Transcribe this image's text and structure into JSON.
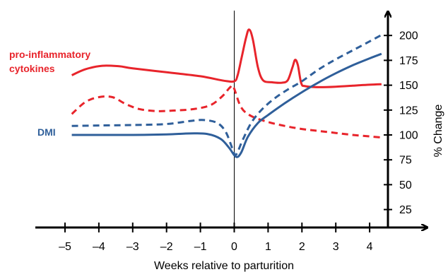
{
  "chart_data": {
    "type": "line",
    "xlabel": "Weeks relative to parturition",
    "ylabel": "% Change",
    "xlim": [
      -5,
      4.5
    ],
    "ylim": [
      10,
      212
    ],
    "x_ticks": [
      -5,
      -4,
      -3,
      -2,
      -1,
      0,
      1,
      2,
      3,
      4
    ],
    "x_tick_labels": [
      "–5",
      "–4",
      "–3",
      "–2",
      "–1",
      "0",
      "1",
      "2",
      "3",
      "4"
    ],
    "y_ticks": [
      25,
      50,
      75,
      100,
      125,
      150,
      175,
      200
    ],
    "y_tick_labels": [
      "25",
      "50",
      "75",
      "100",
      "125",
      "150",
      "175",
      "200"
    ],
    "reference_line_x": 0,
    "y_axis_side": "right",
    "annotations": [
      {
        "text": "pro-inflammatory\ncytokines",
        "color": "#e8242b"
      },
      {
        "text": "DMI",
        "color": "#2f5f9a"
      }
    ],
    "series": [
      {
        "color": "#e8242b",
        "style": "solid",
        "points": [
          [
            -4.8,
            160
          ],
          [
            -4.4,
            166
          ],
          [
            -3.9,
            169.5
          ],
          [
            -3.4,
            169
          ],
          [
            -3,
            167
          ],
          [
            -2,
            163
          ],
          [
            -1,
            159
          ],
          [
            -0.3,
            154.5
          ],
          [
            0,
            154
          ],
          [
            0.1,
            160
          ],
          [
            0.22,
            178
          ],
          [
            0.35,
            198
          ],
          [
            0.44,
            206
          ],
          [
            0.55,
            196
          ],
          [
            0.7,
            168
          ],
          [
            0.85,
            155
          ],
          [
            1.1,
            153
          ],
          [
            1.4,
            152.5
          ],
          [
            1.58,
            155
          ],
          [
            1.72,
            168
          ],
          [
            1.8,
            175.5
          ],
          [
            1.88,
            170
          ],
          [
            1.98,
            152
          ],
          [
            2.1,
            149
          ],
          [
            2.5,
            148
          ],
          [
            3,
            148.5
          ],
          [
            3.5,
            149.5
          ],
          [
            4,
            150.5
          ],
          [
            4.35,
            151
          ]
        ]
      },
      {
        "color": "#e8242b",
        "style": "dashed",
        "points": [
          [
            -4.8,
            121
          ],
          [
            -4.4,
            133
          ],
          [
            -4,
            138
          ],
          [
            -3.6,
            138
          ],
          [
            -3.2,
            131
          ],
          [
            -2.8,
            126
          ],
          [
            -2.3,
            124
          ],
          [
            -1.8,
            124.5
          ],
          [
            -1.2,
            126
          ],
          [
            -0.7,
            130
          ],
          [
            -0.35,
            139
          ],
          [
            -0.12,
            148
          ],
          [
            -0.02,
            148
          ],
          [
            0.2,
            128
          ],
          [
            0.5,
            119
          ],
          [
            1,
            113
          ],
          [
            1.5,
            109
          ],
          [
            2,
            106
          ],
          [
            2.5,
            104
          ],
          [
            3,
            102
          ],
          [
            3.5,
            100
          ],
          [
            4,
            98.5
          ],
          [
            4.35,
            97.5
          ]
        ]
      },
      {
        "color": "#2f5f9a",
        "style": "solid",
        "points": [
          [
            -4.8,
            100
          ],
          [
            -4,
            100
          ],
          [
            -3,
            100
          ],
          [
            -2,
            100.5
          ],
          [
            -1.3,
            101.5
          ],
          [
            -0.8,
            101
          ],
          [
            -0.4,
            96
          ],
          [
            -0.15,
            87
          ],
          [
            0.05,
            78
          ],
          [
            0.2,
            82
          ],
          [
            0.4,
            98
          ],
          [
            0.7,
            112
          ],
          [
            1,
            120
          ],
          [
            1.5,
            132
          ],
          [
            2,
            143
          ],
          [
            2.5,
            153
          ],
          [
            3,
            162
          ],
          [
            3.5,
            170
          ],
          [
            4,
            177
          ],
          [
            4.35,
            181.5
          ]
        ]
      },
      {
        "color": "#2f5f9a",
        "style": "dashed",
        "points": [
          [
            -4.8,
            109
          ],
          [
            -4,
            109.5
          ],
          [
            -3,
            110
          ],
          [
            -2,
            111
          ],
          [
            -1.3,
            114
          ],
          [
            -0.9,
            115
          ],
          [
            -0.5,
            112
          ],
          [
            -0.25,
            103
          ],
          [
            -0.05,
            86
          ],
          [
            0.05,
            80
          ],
          [
            0.25,
            95
          ],
          [
            0.5,
            112
          ],
          [
            0.8,
            125
          ],
          [
            1.2,
            137
          ],
          [
            1.6,
            146
          ],
          [
            2,
            154
          ],
          [
            2.5,
            166
          ],
          [
            3,
            176
          ],
          [
            3.5,
            185
          ],
          [
            4,
            194
          ],
          [
            4.35,
            200.5
          ]
        ]
      }
    ]
  }
}
